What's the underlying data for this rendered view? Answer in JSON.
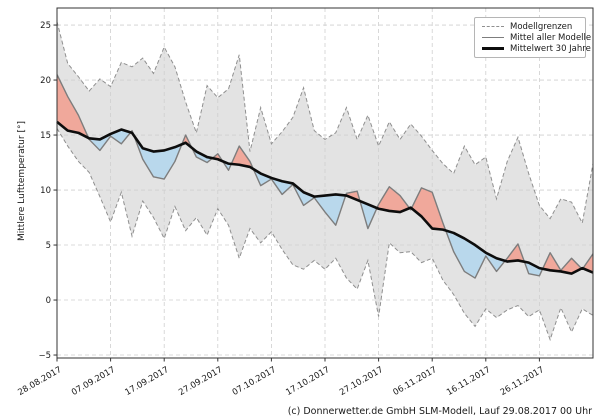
{
  "figure": {
    "ylabel": "Mittlere Lufttemperatur [°]",
    "caption": "(c) Donnerwetter.de GmbH SLM-Modell, Lauf 29.08.2017 00 Uhr"
  },
  "legend": {
    "items": [
      {
        "label": "Modellgrenzen",
        "style": "dashed-gray"
      },
      {
        "label": "Mittel aller Modelle",
        "style": "solid-gray"
      },
      {
        "label": "Mittelwert 30 Jahre",
        "style": "solid-black-thick"
      }
    ]
  },
  "chart_data": {
    "type": "line",
    "title": "",
    "ylabel": "Mittlere Lufttemperatur [°]",
    "x_unit": "days since 28.08.2017",
    "xlim": [
      0,
      100
    ],
    "ylim": [
      -5.27,
      26.55
    ],
    "grid": true,
    "legend_position": "top-right",
    "xticks": {
      "days": [
        0,
        10,
        20,
        30,
        40,
        50,
        60,
        70,
        80,
        90
      ],
      "labels": [
        "28.08.2017",
        "07.09.2017",
        "17.09.2017",
        "27.09.2017",
        "07.10.2017",
        "17.10.2017",
        "27.10.2017",
        "06.11.2017",
        "16.11.2017",
        "26.11.2017"
      ]
    },
    "yticks": {
      "values": [
        25,
        20,
        15,
        10,
        5,
        0,
        -5
      ],
      "labels": [
        "25",
        "20",
        "15",
        "10",
        "5",
        "0",
        "−5"
      ]
    },
    "days": [
      0,
      2,
      4,
      6,
      8,
      10,
      12,
      14,
      16,
      18,
      20,
      22,
      24,
      26,
      28,
      30,
      32,
      34,
      36,
      38,
      40,
      42,
      44,
      46,
      48,
      50,
      52,
      54,
      56,
      58,
      60,
      62,
      64,
      66,
      68,
      70,
      72,
      74,
      76,
      78,
      80,
      82,
      84,
      86,
      88,
      90,
      92,
      94,
      96,
      98,
      100
    ],
    "series": [
      {
        "name": "Obere Modellgrenze",
        "legend": "Modellgrenzen",
        "style": "dashed",
        "values": [
          25.3,
          21.5,
          20.3,
          19.0,
          20.1,
          19.4,
          21.6,
          21.2,
          22.0,
          20.6,
          23.0,
          21.2,
          18.0,
          15.2,
          19.5,
          18.4,
          19.2,
          22.3,
          13.5,
          17.5,
          14.2,
          15.3,
          16.6,
          19.3,
          15.4,
          14.6,
          15.2,
          17.5,
          14.6,
          16.8,
          14.0,
          16.2,
          14.6,
          16.0,
          14.9,
          13.6,
          12.4,
          11.5,
          14.0,
          12.3,
          13.0,
          9.2,
          12.6,
          14.8,
          11.5,
          8.6,
          7.4,
          9.2,
          8.9,
          7.0,
          12.4
        ]
      },
      {
        "name": "Untere Modellgrenze",
        "legend": "Modellgrenzen",
        "style": "dashed",
        "values": [
          15.6,
          14.0,
          12.6,
          11.6,
          9.4,
          7.1,
          9.8,
          5.8,
          9.0,
          7.5,
          5.6,
          8.5,
          6.3,
          7.5,
          5.9,
          8.3,
          6.8,
          3.8,
          6.5,
          5.2,
          6.2,
          4.6,
          3.2,
          2.8,
          3.6,
          2.8,
          3.8,
          2.0,
          1.0,
          3.6,
          -1.5,
          5.2,
          4.3,
          4.4,
          3.4,
          3.8,
          1.8,
          0.5,
          -1.2,
          -2.4,
          -0.8,
          -1.6,
          -0.9,
          -0.5,
          -1.5,
          -0.9,
          -3.6,
          -0.7,
          -2.9,
          -0.8,
          -1.4
        ]
      },
      {
        "name": "Mittel aller Modelle",
        "legend": "Mittel aller Modelle",
        "style": "solid-gray",
        "values": [
          20.5,
          18.5,
          16.8,
          14.6,
          13.6,
          14.9,
          14.2,
          15.4,
          12.8,
          11.2,
          11.0,
          12.6,
          15.0,
          13.0,
          12.5,
          13.3,
          11.8,
          14.0,
          12.6,
          10.4,
          11.0,
          9.6,
          10.5,
          8.6,
          9.3,
          8.0,
          6.8,
          9.7,
          9.9,
          6.5,
          8.7,
          10.3,
          9.5,
          8.2,
          10.2,
          9.8,
          7.0,
          4.4,
          2.6,
          2.0,
          4.0,
          2.6,
          3.8,
          5.1,
          2.4,
          2.2,
          4.3,
          2.7,
          3.8,
          2.8,
          4.2
        ]
      },
      {
        "name": "Mittelwert 30 Jahre",
        "legend": "Mittelwert 30 Jahre",
        "style": "solid-black-thick",
        "values": [
          16.2,
          15.4,
          15.2,
          14.7,
          14.6,
          15.1,
          15.5,
          15.2,
          13.8,
          13.5,
          13.6,
          13.9,
          14.3,
          13.5,
          13.0,
          12.8,
          12.4,
          12.3,
          12.1,
          11.5,
          11.1,
          10.8,
          10.6,
          9.8,
          9.4,
          9.5,
          9.6,
          9.5,
          9.1,
          8.7,
          8.3,
          8.1,
          8.0,
          8.4,
          7.6,
          6.5,
          6.4,
          6.1,
          5.6,
          5.0,
          4.3,
          3.8,
          3.5,
          3.6,
          3.4,
          2.9,
          2.7,
          2.6,
          2.4,
          2.9,
          2.5
        ]
      }
    ],
    "colors": {
      "band_fill": "#e3e3e3",
      "boundary_line": "#8f8f8f",
      "model_mean_line": "#7d7d7d",
      "mean30_line": "#0d0d0d",
      "warmer_fill": "#f0a89b",
      "colder_fill": "#b9d8ec",
      "grid": "#cfcfcf",
      "spine": "#333333",
      "tick_text": "#1a1a1a"
    }
  }
}
